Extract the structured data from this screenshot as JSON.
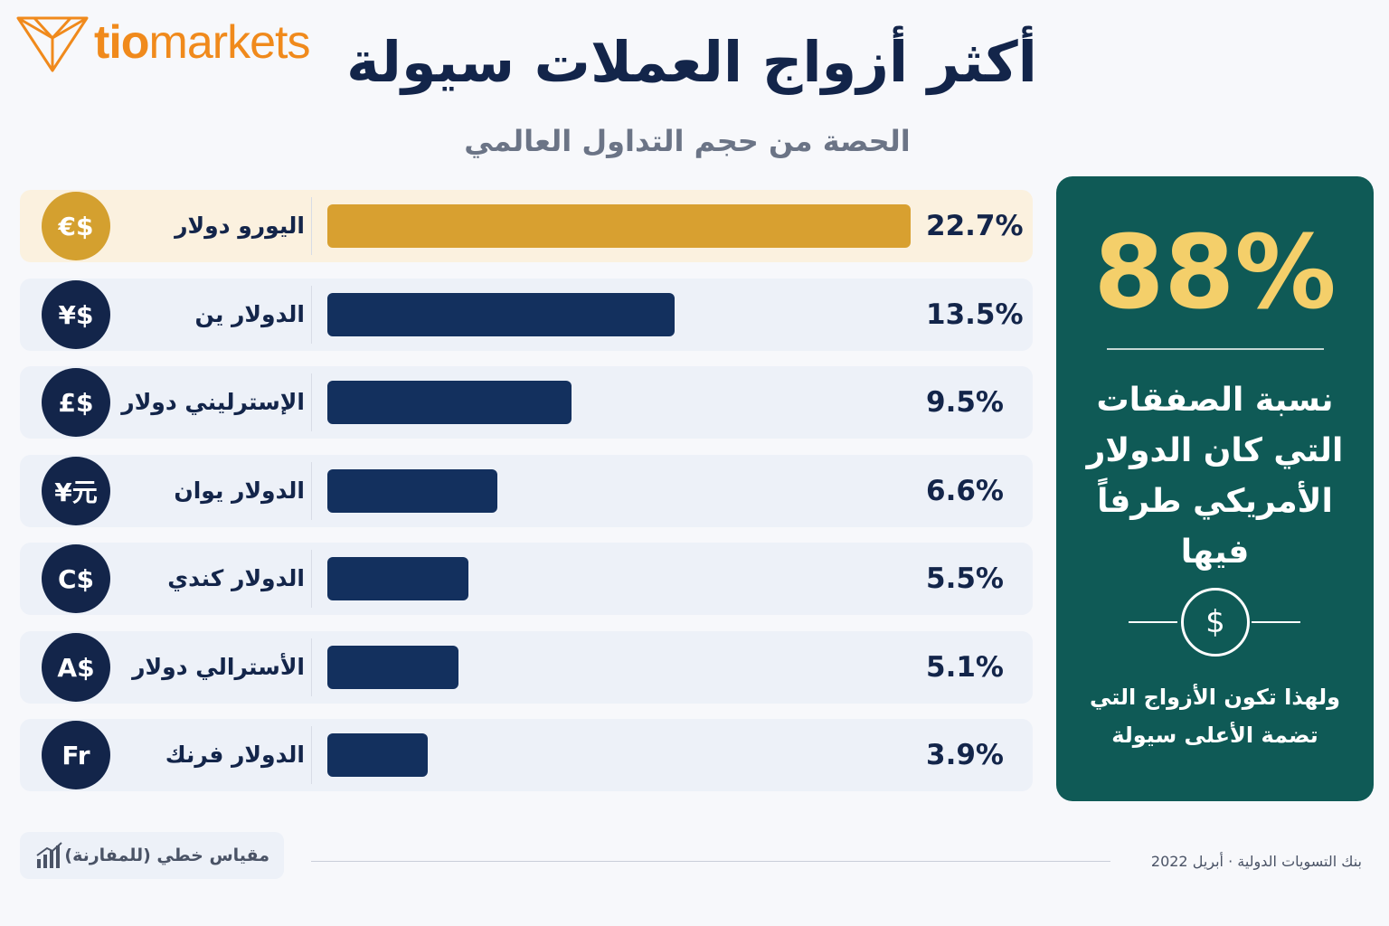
{
  "brand": {
    "logo_text_bold": "tio",
    "logo_text_light": "markets",
    "color": "#f08a1c"
  },
  "header": {
    "title": "أكثر أزواج العملات سيولة",
    "subtitle": "الحصة من حجم التداول العالمي"
  },
  "chart_data": {
    "type": "bar",
    "orientation": "horizontal",
    "title": "أكثر أزواج العملات سيولة",
    "subtitle": "الحصة من حجم التداول العالمي",
    "categories": [
      "اليورو دولار",
      "الدولار ين",
      "الإسترليني دولار",
      "الدولار يوان",
      "الدولار كندي",
      "الأسترالي دولار",
      "الدولار فرنك"
    ],
    "symbols": [
      "€$",
      "¥$",
      "£$",
      "¥元",
      "C$",
      "A$",
      "Fr"
    ],
    "values": [
      22.7,
      13.5,
      9.5,
      6.6,
      5.5,
      5.1,
      3.9
    ],
    "value_labels": [
      "22.7%",
      "13.5%",
      "9.5%",
      "6.6%",
      "5.5%",
      "5.1%",
      "3.9%"
    ],
    "unit": "%",
    "xlim": [
      0,
      22.7
    ],
    "highlight_index": 0,
    "colors": {
      "highlight": "#d8a030",
      "bar": "#13305e"
    }
  },
  "stat_panel": {
    "value": "88%",
    "text": "نسبة الصفقات التي كان الدولار الأمريكي طرفاً فيها",
    "icon": "dollar-coin-icon",
    "note": "ولهذا تكون الأزواج التي تضمة الأعلى سيولة",
    "background": "#0f5a56",
    "accent": "#f4cf6a"
  },
  "footer": {
    "scale_note": "مقياس خطي (للمفارنة)",
    "scale_icon": "bar-chart-icon",
    "source": "بنك التسويات الدولية · أبريل 2022"
  }
}
